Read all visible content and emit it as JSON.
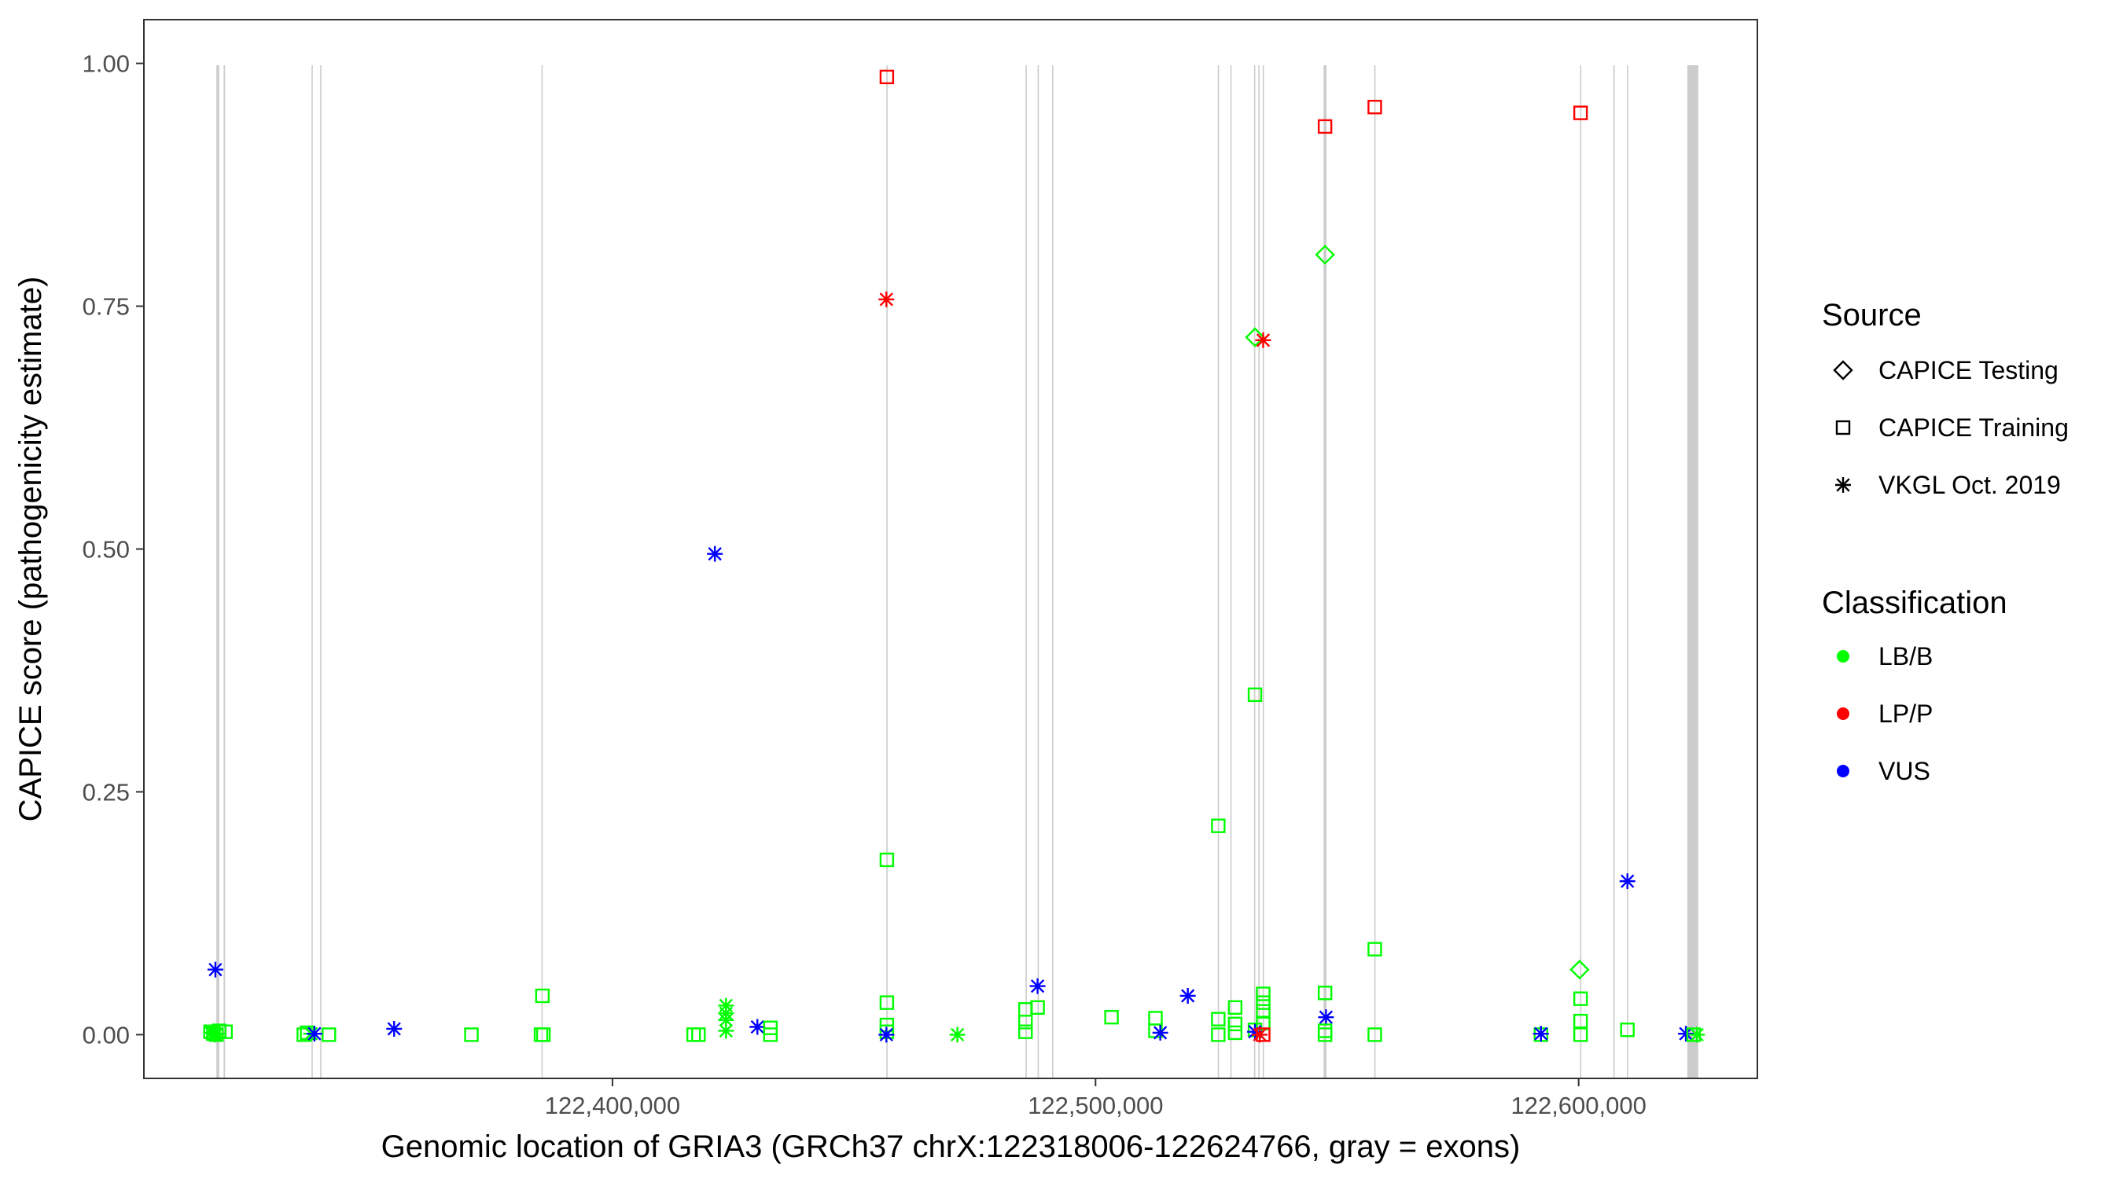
{
  "chart_data": {
    "type": "scatter",
    "xlabel": "Genomic location of GRIA3 (GRCh37 chrX:122318006-122624766, gray = exons)",
    "ylabel": "CAPICE score (pathogenicity estimate)",
    "xlim": [
      122303000,
      122637000
    ],
    "ylim": [
      -0.045,
      1.045
    ],
    "x_ticks": [
      {
        "value": 122400000,
        "label": "122,400,000"
      },
      {
        "value": 122500000,
        "label": "122,500,000"
      },
      {
        "value": 122600000,
        "label": "122,600,000"
      }
    ],
    "y_ticks": [
      {
        "value": 0.0,
        "label": "0.00"
      },
      {
        "value": 0.25,
        "label": "0.25"
      },
      {
        "value": 0.5,
        "label": "0.50"
      },
      {
        "value": 0.75,
        "label": "0.75"
      },
      {
        "value": 1.0,
        "label": "1.00"
      }
    ],
    "grid": false,
    "exons": [
      {
        "start": 122318006,
        "end": 122318600
      },
      {
        "start": 122319500,
        "end": 122319800
      },
      {
        "start": 122337700,
        "end": 122337900
      },
      {
        "start": 122339500,
        "end": 122339700
      },
      {
        "start": 122385300,
        "end": 122385500
      },
      {
        "start": 122456700,
        "end": 122456900
      },
      {
        "start": 122485500,
        "end": 122485700
      },
      {
        "start": 122488000,
        "end": 122488200
      },
      {
        "start": 122491000,
        "end": 122491200
      },
      {
        "start": 122525300,
        "end": 122525500
      },
      {
        "start": 122527900,
        "end": 122528100
      },
      {
        "start": 122532800,
        "end": 122533000
      },
      {
        "start": 122533700,
        "end": 122533900
      },
      {
        "start": 122534600,
        "end": 122534800
      },
      {
        "start": 122547200,
        "end": 122547800
      },
      {
        "start": 122557700,
        "end": 122557900
      },
      {
        "start": 122600300,
        "end": 122600500
      },
      {
        "start": 122607200,
        "end": 122607400
      },
      {
        "start": 122610000,
        "end": 122610200
      },
      {
        "start": 122622500,
        "end": 122624766
      }
    ],
    "colors": {
      "LB/B": "#00ff00",
      "LP/P": "#ff0000",
      "VUS": "#0000ff"
    },
    "legend": {
      "position": "right",
      "source_title": "Source",
      "source_entries": [
        {
          "label": "CAPICE Testing",
          "shape": "diamond"
        },
        {
          "label": "CAPICE Training",
          "shape": "square"
        },
        {
          "label": "VKGL Oct. 2019",
          "shape": "asterisk"
        }
      ],
      "class_title": "Classification",
      "class_entries": [
        {
          "label": "LB/B",
          "color": "#00ff00"
        },
        {
          "label": "LP/P",
          "color": "#ff0000"
        },
        {
          "label": "VUS",
          "color": "#0000ff"
        }
      ]
    },
    "points": [
      {
        "x": 122316800,
        "y": 0.003,
        "source": "CAPICE Training",
        "class": "LB/B"
      },
      {
        "x": 122317400,
        "y": 0.001,
        "source": "CAPICE Training",
        "class": "LB/B"
      },
      {
        "x": 122318000,
        "y": 0.0,
        "source": "CAPICE Training",
        "class": "LB/B"
      },
      {
        "x": 122318600,
        "y": 0.004,
        "source": "CAPICE Training",
        "class": "LB/B"
      },
      {
        "x": 122319900,
        "y": 0.003,
        "source": "CAPICE Training",
        "class": "LB/B"
      },
      {
        "x": 122316900,
        "y": 0.002,
        "source": "VKGL Oct. 2019",
        "class": "LB/B"
      },
      {
        "x": 122317700,
        "y": 0.0,
        "source": "VKGL Oct. 2019",
        "class": "LB/B"
      },
      {
        "x": 122318100,
        "y": 0.001,
        "source": "VKGL Oct. 2019",
        "class": "LB/B"
      },
      {
        "x": 122317800,
        "y": 0.067,
        "source": "VKGL Oct. 2019",
        "class": "VUS"
      },
      {
        "x": 122336100,
        "y": 0.0,
        "source": "CAPICE Training",
        "class": "LB/B"
      },
      {
        "x": 122336800,
        "y": 0.002,
        "source": "CAPICE Training",
        "class": "LB/B"
      },
      {
        "x": 122341300,
        "y": 0.0,
        "source": "CAPICE Training",
        "class": "LB/B"
      },
      {
        "x": 122337600,
        "y": 0.001,
        "source": "VKGL Oct. 2019",
        "class": "LB/B"
      },
      {
        "x": 122338300,
        "y": 0.001,
        "source": "VKGL Oct. 2019",
        "class": "VUS"
      },
      {
        "x": 122354800,
        "y": 0.006,
        "source": "VKGL Oct. 2019",
        "class": "VUS"
      },
      {
        "x": 122370800,
        "y": 0.0,
        "source": "CAPICE Training",
        "class": "LB/B"
      },
      {
        "x": 122385500,
        "y": 0.04,
        "source": "CAPICE Training",
        "class": "LB/B"
      },
      {
        "x": 122385200,
        "y": 0.0,
        "source": "CAPICE Training",
        "class": "LB/B"
      },
      {
        "x": 122385700,
        "y": 0.0,
        "source": "CAPICE Training",
        "class": "LB/B"
      },
      {
        "x": 122416800,
        "y": 0.0,
        "source": "CAPICE Training",
        "class": "LB/B"
      },
      {
        "x": 122417800,
        "y": 0.0,
        "source": "CAPICE Training",
        "class": "LB/B"
      },
      {
        "x": 122421200,
        "y": 0.495,
        "source": "VKGL Oct. 2019",
        "class": "VUS"
      },
      {
        "x": 122423500,
        "y": 0.03,
        "source": "VKGL Oct. 2019",
        "class": "LB/B"
      },
      {
        "x": 122423500,
        "y": 0.022,
        "source": "VKGL Oct. 2019",
        "class": "LB/B"
      },
      {
        "x": 122423500,
        "y": 0.015,
        "source": "VKGL Oct. 2019",
        "class": "LB/B"
      },
      {
        "x": 122423500,
        "y": 0.004,
        "source": "VKGL Oct. 2019",
        "class": "LB/B"
      },
      {
        "x": 122430000,
        "y": 0.008,
        "source": "VKGL Oct. 2019",
        "class": "VUS"
      },
      {
        "x": 122432700,
        "y": 0.007,
        "source": "CAPICE Training",
        "class": "LB/B"
      },
      {
        "x": 122432700,
        "y": 0.0,
        "source": "CAPICE Training",
        "class": "LB/B"
      },
      {
        "x": 122456800,
        "y": 0.986,
        "source": "CAPICE Training",
        "class": "LP/P"
      },
      {
        "x": 122456700,
        "y": 0.757,
        "source": "VKGL Oct. 2019",
        "class": "LP/P"
      },
      {
        "x": 122456800,
        "y": 0.18,
        "source": "CAPICE Training",
        "class": "LB/B"
      },
      {
        "x": 122456800,
        "y": 0.033,
        "source": "CAPICE Training",
        "class": "LB/B"
      },
      {
        "x": 122456800,
        "y": 0.01,
        "source": "CAPICE Training",
        "class": "LB/B"
      },
      {
        "x": 122456800,
        "y": 0.003,
        "source": "CAPICE Training",
        "class": "LB/B"
      },
      {
        "x": 122456700,
        "y": 0.0,
        "source": "VKGL Oct. 2019",
        "class": "VUS"
      },
      {
        "x": 122471400,
        "y": 0.0,
        "source": "VKGL Oct. 2019",
        "class": "LB/B"
      },
      {
        "x": 122485500,
        "y": 0.026,
        "source": "CAPICE Training",
        "class": "LB/B"
      },
      {
        "x": 122485500,
        "y": 0.013,
        "source": "CAPICE Training",
        "class": "LB/B"
      },
      {
        "x": 122485500,
        "y": 0.003,
        "source": "CAPICE Training",
        "class": "LB/B"
      },
      {
        "x": 122488000,
        "y": 0.05,
        "source": "VKGL Oct. 2019",
        "class": "VUS"
      },
      {
        "x": 122488000,
        "y": 0.028,
        "source": "CAPICE Training",
        "class": "LB/B"
      },
      {
        "x": 122503300,
        "y": 0.018,
        "source": "CAPICE Training",
        "class": "LB/B"
      },
      {
        "x": 122512400,
        "y": 0.017,
        "source": "CAPICE Training",
        "class": "LB/B"
      },
      {
        "x": 122512400,
        "y": 0.004,
        "source": "CAPICE Training",
        "class": "LB/B"
      },
      {
        "x": 122513400,
        "y": 0.002,
        "source": "VKGL Oct. 2019",
        "class": "VUS"
      },
      {
        "x": 122519100,
        "y": 0.04,
        "source": "VKGL Oct. 2019",
        "class": "VUS"
      },
      {
        "x": 122525400,
        "y": 0.215,
        "source": "CAPICE Training",
        "class": "LB/B"
      },
      {
        "x": 122525400,
        "y": 0.016,
        "source": "CAPICE Training",
        "class": "LB/B"
      },
      {
        "x": 122525400,
        "y": 0.0,
        "source": "CAPICE Training",
        "class": "LB/B"
      },
      {
        "x": 122528900,
        "y": 0.028,
        "source": "CAPICE Training",
        "class": "LB/B"
      },
      {
        "x": 122528900,
        "y": 0.011,
        "source": "CAPICE Training",
        "class": "LB/B"
      },
      {
        "x": 122528900,
        "y": 0.002,
        "source": "CAPICE Training",
        "class": "LB/B"
      },
      {
        "x": 122533000,
        "y": 0.35,
        "source": "CAPICE Training",
        "class": "LB/B"
      },
      {
        "x": 122533000,
        "y": 0.718,
        "source": "CAPICE Testing",
        "class": "LB/B"
      },
      {
        "x": 122534700,
        "y": 0.715,
        "source": "VKGL Oct. 2019",
        "class": "LP/P"
      },
      {
        "x": 122534700,
        "y": 0.042,
        "source": "CAPICE Training",
        "class": "LB/B"
      },
      {
        "x": 122534700,
        "y": 0.033,
        "source": "CAPICE Training",
        "class": "LB/B"
      },
      {
        "x": 122534700,
        "y": 0.024,
        "source": "CAPICE Training",
        "class": "LB/B"
      },
      {
        "x": 122534700,
        "y": 0.012,
        "source": "CAPICE Training",
        "class": "LB/B"
      },
      {
        "x": 122533000,
        "y": 0.005,
        "source": "CAPICE Training",
        "class": "LB/B"
      },
      {
        "x": 122533000,
        "y": 0.003,
        "source": "VKGL Oct. 2019",
        "class": "VUS"
      },
      {
        "x": 122534000,
        "y": 0.0,
        "source": "VKGL Oct. 2019",
        "class": "LP/P"
      },
      {
        "x": 122534700,
        "y": 0.0,
        "source": "CAPICE Training",
        "class": "LP/P"
      },
      {
        "x": 122547500,
        "y": 0.935,
        "source": "CAPICE Training",
        "class": "LP/P"
      },
      {
        "x": 122547500,
        "y": 0.803,
        "source": "CAPICE Testing",
        "class": "LB/B"
      },
      {
        "x": 122547500,
        "y": 0.043,
        "source": "CAPICE Training",
        "class": "LB/B"
      },
      {
        "x": 122547700,
        "y": 0.018,
        "source": "VKGL Oct. 2019",
        "class": "VUS"
      },
      {
        "x": 122547500,
        "y": 0.004,
        "source": "CAPICE Training",
        "class": "LB/B"
      },
      {
        "x": 122547500,
        "y": 0.0,
        "source": "CAPICE Training",
        "class": "LB/B"
      },
      {
        "x": 122557800,
        "y": 0.955,
        "source": "CAPICE Training",
        "class": "LP/P"
      },
      {
        "x": 122557800,
        "y": 0.088,
        "source": "CAPICE Training",
        "class": "LB/B"
      },
      {
        "x": 122557800,
        "y": 0.0,
        "source": "CAPICE Training",
        "class": "LB/B"
      },
      {
        "x": 122592200,
        "y": 0.0,
        "source": "CAPICE Training",
        "class": "LB/B"
      },
      {
        "x": 122592200,
        "y": 0.001,
        "source": "VKGL Oct. 2019",
        "class": "VUS"
      },
      {
        "x": 122600200,
        "y": 0.067,
        "source": "CAPICE Testing",
        "class": "LB/B"
      },
      {
        "x": 122600400,
        "y": 0.949,
        "source": "CAPICE Training",
        "class": "LP/P"
      },
      {
        "x": 122600400,
        "y": 0.037,
        "source": "CAPICE Training",
        "class": "LB/B"
      },
      {
        "x": 122600400,
        "y": 0.014,
        "source": "CAPICE Training",
        "class": "LB/B"
      },
      {
        "x": 122600400,
        "y": 0.0,
        "source": "CAPICE Training",
        "class": "LB/B"
      },
      {
        "x": 122610100,
        "y": 0.158,
        "source": "VKGL Oct. 2019",
        "class": "VUS"
      },
      {
        "x": 122610100,
        "y": 0.005,
        "source": "CAPICE Training",
        "class": "LB/B"
      },
      {
        "x": 122622200,
        "y": 0.001,
        "source": "VKGL Oct. 2019",
        "class": "VUS"
      },
      {
        "x": 122623800,
        "y": 0.0,
        "source": "CAPICE Training",
        "class": "LB/B"
      },
      {
        "x": 122624500,
        "y": 0.0,
        "source": "VKGL Oct. 2019",
        "class": "LB/B"
      }
    ]
  }
}
